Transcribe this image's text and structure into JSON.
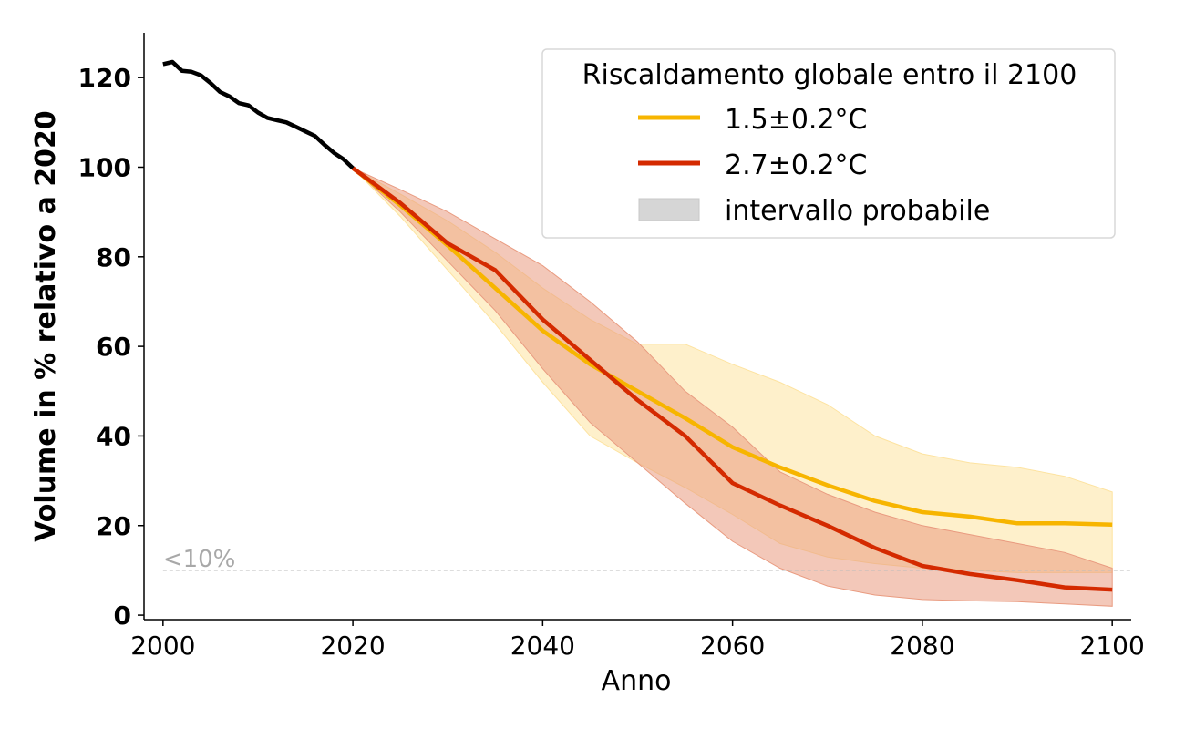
{
  "chart_data": {
    "type": "line",
    "xlabel": "Anno",
    "ylabel": "Volume in % relativo a 2020",
    "xlim": [
      1998,
      2102
    ],
    "ylim": [
      -1,
      130
    ],
    "xticks": [
      2000,
      2020,
      2040,
      2060,
      2080,
      2100
    ],
    "yticks": [
      0,
      20,
      40,
      60,
      80,
      100,
      120
    ],
    "reference_line": {
      "y": 10,
      "label": "<10%",
      "color": "#bbbbbb"
    },
    "legend": {
      "title": "Riscaldamento globale entro il 2100",
      "position": "top-right",
      "band_label": "intervallo probabile",
      "band_color": "#d6d6d6"
    },
    "historical": {
      "color": "#000000",
      "x": [
        2000,
        2001,
        2002,
        2003,
        2004,
        2005,
        2006,
        2007,
        2008,
        2009,
        2010,
        2011,
        2012,
        2013,
        2014,
        2015,
        2016,
        2017,
        2018,
        2019,
        2020
      ],
      "y": [
        123,
        123.5,
        121.5,
        121.3,
        120.5,
        118.8,
        116.8,
        115.8,
        114.3,
        113.8,
        112.2,
        111,
        110.5,
        110,
        109,
        108,
        107,
        105,
        103.2,
        101.8,
        99.8
      ]
    },
    "series": [
      {
        "name": "1.5±0.2°C",
        "color": "#f7b500",
        "band_color": "#fde3a0",
        "x": [
          2020,
          2025,
          2030,
          2035,
          2040,
          2045,
          2050,
          2055,
          2060,
          2065,
          2070,
          2075,
          2080,
          2085,
          2090,
          2095,
          2100
        ],
        "y": [
          99.8,
          91.5,
          82.5,
          73,
          63.5,
          56,
          50,
          44,
          37.5,
          33,
          29,
          25.5,
          23,
          22,
          20.5,
          20.5,
          20.2
        ],
        "lower": [
          99.8,
          89,
          77,
          65,
          52,
          40,
          34,
          28.5,
          22.5,
          16,
          13,
          11.5,
          10.5,
          10,
          9.5,
          9.5,
          9.5
        ],
        "upper": [
          99.8,
          94,
          88,
          81,
          73,
          66,
          60.5,
          60.5,
          56,
          52,
          47,
          40,
          36,
          34,
          33,
          31,
          27.5
        ]
      },
      {
        "name": "2.7±0.2°C",
        "color": "#d42a00",
        "band_color": "#e99b80",
        "x": [
          2020,
          2025,
          2030,
          2035,
          2040,
          2045,
          2050,
          2055,
          2060,
          2065,
          2070,
          2075,
          2080,
          2085,
          2090,
          2095,
          2100
        ],
        "y": [
          99.8,
          92,
          83,
          77,
          66,
          57,
          48,
          40,
          29.5,
          24.5,
          20,
          15,
          11,
          9.2,
          7.8,
          6.2,
          5.7
        ],
        "lower": [
          99.8,
          90,
          79,
          68,
          55,
          43,
          34,
          25,
          16.5,
          10.5,
          6.5,
          4.5,
          3.5,
          3.2,
          3,
          2.5,
          2
        ],
        "upper": [
          99.8,
          95,
          90,
          84,
          78,
          70,
          61,
          50,
          42,
          32,
          27,
          23,
          20,
          18,
          16,
          14,
          10.5
        ]
      }
    ]
  }
}
